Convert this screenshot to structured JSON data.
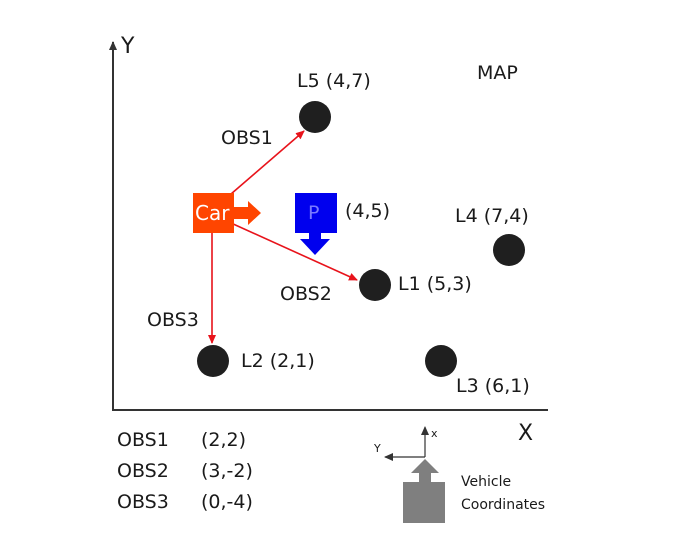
{
  "axes": {
    "x_label": "X",
    "y_label": "Y"
  },
  "map_label": "MAP",
  "car": {
    "label": "Car",
    "color": "#ff4500"
  },
  "particle": {
    "label": "P",
    "coords": "(4,5)",
    "color": "#0000ee"
  },
  "landmarks": [
    {
      "id": "L1",
      "text": "L1 (5,3)",
      "x": 5,
      "y": 3
    },
    {
      "id": "L2",
      "text": "L2 (2,1)",
      "x": 2,
      "y": 1
    },
    {
      "id": "L3",
      "text": "L3 (6,1)",
      "x": 6,
      "y": 1
    },
    {
      "id": "L4",
      "text": "L4 (7,4)",
      "x": 7,
      "y": 4
    },
    {
      "id": "L5",
      "text": "L5 (4,7)",
      "x": 4,
      "y": 7
    }
  ],
  "observation_arrows": [
    {
      "label": "OBS1",
      "target": "L5"
    },
    {
      "label": "OBS2",
      "target": "L1"
    },
    {
      "label": "OBS3",
      "target": "L2"
    }
  ],
  "observations": [
    {
      "name": "OBS1",
      "value": "(2,2)"
    },
    {
      "name": "OBS2",
      "value": "(3,-2)"
    },
    {
      "name": "OBS3",
      "value": "(0,-4)"
    }
  ],
  "vehicle_coords": {
    "axis_x": "x",
    "axis_y": "Y",
    "caption_line1": "Vehicle",
    "caption_line2": "Coordinates"
  },
  "colors": {
    "arrow_red": "#e8131b",
    "landmark": "#1f1f1f",
    "axis": "#333333",
    "vehicle_gray": "#7f7f7f"
  }
}
